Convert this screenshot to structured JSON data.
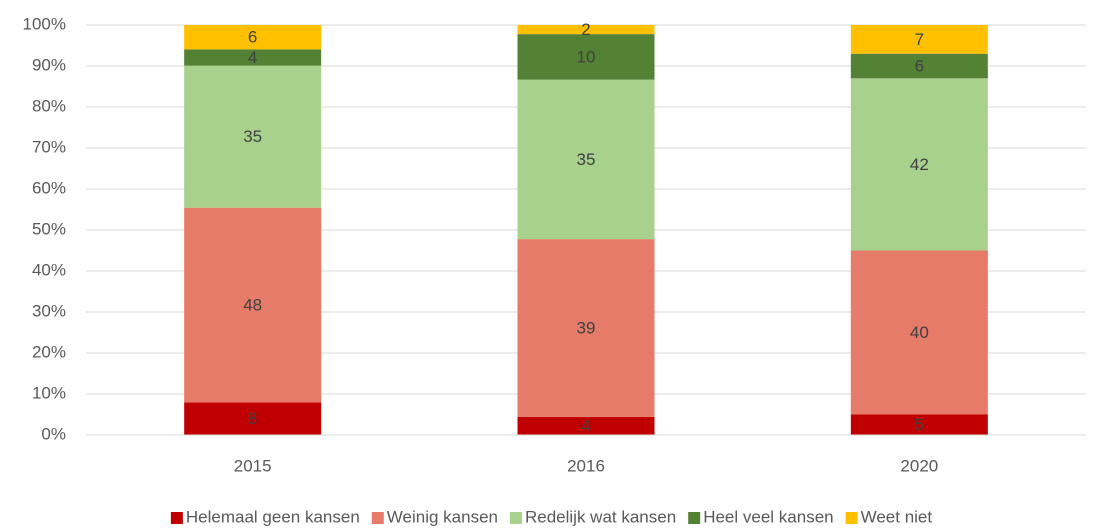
{
  "chart_data": {
    "type": "bar",
    "stacking": "percent",
    "categories": [
      "2015",
      "2016",
      "2020"
    ],
    "series": [
      {
        "name": "Helemaal geen kansen",
        "color": "#c00000",
        "values": [
          8,
          4,
          5
        ]
      },
      {
        "name": "Weinig kansen",
        "color": "#e57b68",
        "values": [
          48,
          39,
          40
        ]
      },
      {
        "name": "Redelijk wat kansen",
        "color": "#a9d18e",
        "values": [
          35,
          35,
          42
        ]
      },
      {
        "name": "Heel veel kansen",
        "color": "#548235",
        "values": [
          4,
          10,
          6
        ]
      },
      {
        "name": "Weet niet",
        "color": "#ffc000",
        "values": [
          6,
          2,
          7
        ]
      }
    ],
    "ylim": [
      0,
      100
    ],
    "yticks": [
      {
        "value": 0,
        "label": "0%"
      },
      {
        "value": 10,
        "label": "10%"
      },
      {
        "value": 20,
        "label": "20%"
      },
      {
        "value": 30,
        "label": "30%"
      },
      {
        "value": 40,
        "label": "40%"
      },
      {
        "value": 50,
        "label": "50%"
      },
      {
        "value": 60,
        "label": "60%"
      },
      {
        "value": 70,
        "label": "70%"
      },
      {
        "value": 80,
        "label": "80%"
      },
      {
        "value": 90,
        "label": "90%"
      },
      {
        "value": 100,
        "label": "100%"
      }
    ],
    "grid": true,
    "legend": "bottom"
  }
}
